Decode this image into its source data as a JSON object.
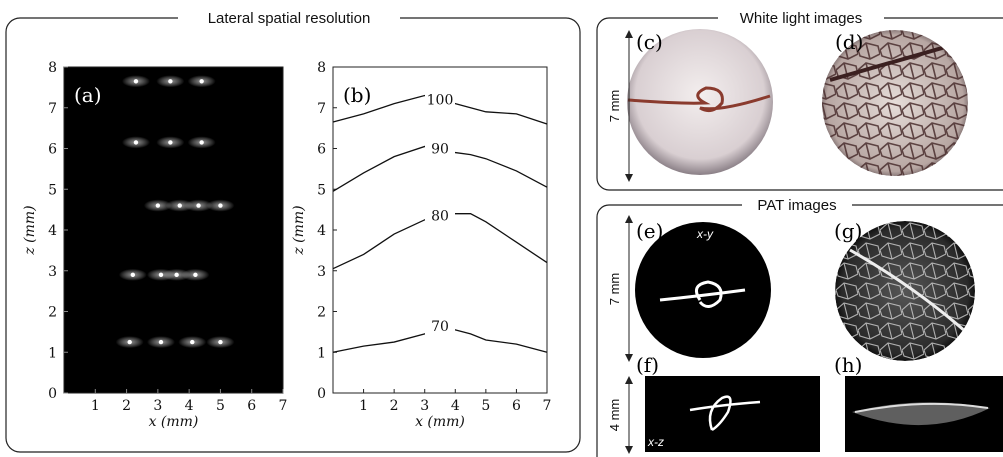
{
  "sections": [
    {
      "title": "Lateral spatial resolution"
    },
    {
      "title": "White light images"
    },
    {
      "title": "PAT images"
    }
  ],
  "panels": {
    "c": "(c)",
    "d": "(d)",
    "e": "(e)",
    "f": "(f)",
    "g": "(g)",
    "h": "(h)"
  },
  "annotations": {
    "e": "x-y",
    "f": "x-z"
  },
  "scale_bars": [
    "7 mm",
    "7 mm",
    "4 mm"
  ],
  "chart_data": [
    {
      "type": "scatter",
      "label": "(a)",
      "xlabel": "x (mm)",
      "ylabel": "z (mm)",
      "color": "#ffffff",
      "x": [
        2.3,
        3.4,
        4.4,
        2.3,
        3.4,
        4.4,
        3.0,
        3.7,
        4.3,
        5.0,
        2.2,
        3.1,
        3.6,
        4.2,
        2.1,
        3.1,
        4.1,
        5.0
      ],
      "values": [
        7.65,
        7.65,
        7.65,
        6.15,
        6.15,
        6.15,
        4.6,
        4.6,
        4.6,
        4.6,
        2.9,
        2.9,
        2.9,
        2.9,
        1.25,
        1.25,
        1.25,
        1.25
      ],
      "xlim": [
        0,
        7
      ],
      "ylim": [
        0,
        8
      ],
      "xticks": [
        1,
        2,
        3,
        4,
        5,
        6,
        7
      ],
      "yticks": [
        0,
        1,
        2,
        3,
        4,
        5,
        6,
        7,
        8
      ]
    },
    {
      "type": "line",
      "label": "(b)",
      "xlabel": "x (mm)",
      "ylabel": "z (mm)",
      "x": [
        0,
        1,
        2,
        3,
        3.5,
        4,
        4.5,
        5,
        6,
        7
      ],
      "series": [
        {
          "name": "100",
          "color": "#111111",
          "values": [
            6.65,
            6.85,
            7.1,
            7.3,
            7.2,
            7.1,
            7.0,
            6.9,
            6.85,
            6.6
          ]
        },
        {
          "name": "90",
          "color": "#111111",
          "values": [
            4.95,
            5.4,
            5.8,
            6.05,
            6.0,
            5.9,
            5.85,
            5.75,
            5.45,
            5.05
          ]
        },
        {
          "name": "80",
          "color": "#111111",
          "values": [
            3.05,
            3.4,
            3.9,
            4.25,
            4.35,
            4.4,
            4.4,
            4.2,
            3.7,
            3.2
          ]
        },
        {
          "name": "70",
          "color": "#111111",
          "values": [
            1.0,
            1.15,
            1.25,
            1.45,
            1.65,
            1.55,
            1.45,
            1.3,
            1.2,
            1.0
          ]
        }
      ],
      "xlim": [
        0,
        7
      ],
      "ylim": [
        0,
        8
      ],
      "xticks": [
        1,
        2,
        3,
        4,
        5,
        6,
        7
      ],
      "yticks": [
        0,
        1,
        2,
        3,
        4,
        5,
        6,
        7,
        8
      ]
    }
  ]
}
